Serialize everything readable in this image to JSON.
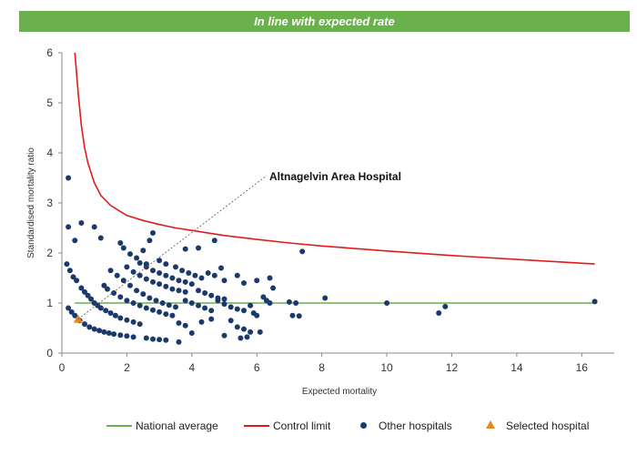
{
  "banner": {
    "text": "In line with expected rate"
  },
  "legend": {
    "national_average": "National average",
    "control_limit": "Control limit",
    "other_hospitals": "Other hospitals",
    "selected_hospital": "Selected hospital"
  },
  "colors": {
    "banner": "#6ab04c",
    "national_average": "#6ab04c",
    "control_limit": "#dd1c1c",
    "other_hospitals": "#1b3a6b",
    "selected_hospital": "#e8861a"
  },
  "chart_data": {
    "type": "scatter",
    "title": "",
    "xlabel": "Expected mortality",
    "ylabel": "Standardised mortality ratio",
    "xlim": [
      0,
      17
    ],
    "ylim": [
      0,
      6
    ],
    "x_ticks": [
      "0",
      "2",
      "4",
      "6",
      "8",
      "10",
      "12",
      "14",
      "16"
    ],
    "y_ticks": [
      "0",
      "1",
      "2",
      "3",
      "4",
      "5",
      "6"
    ],
    "grid": false,
    "legend_position": "bottom",
    "annotation": {
      "label": "Altnagelvin Area Hospital",
      "point": [
        0.5,
        0.68
      ]
    },
    "national_average": {
      "name": "National average",
      "x": [
        0.4,
        16.4
      ],
      "y": [
        1,
        1
      ]
    },
    "control_limit": {
      "name": "Control limit",
      "x": [
        0.4,
        0.5,
        0.6,
        0.7,
        0.8,
        1.0,
        1.2,
        1.5,
        2,
        2.5,
        3,
        3.5,
        4,
        5,
        6,
        7,
        8,
        10,
        12,
        14,
        16.4
      ],
      "y": [
        6.0,
        5.2,
        4.55,
        4.1,
        3.8,
        3.4,
        3.15,
        2.95,
        2.75,
        2.65,
        2.57,
        2.5,
        2.45,
        2.35,
        2.27,
        2.2,
        2.14,
        2.04,
        1.95,
        1.87,
        1.78
      ]
    },
    "series": [
      {
        "name": "Other hospitals",
        "points": [
          [
            0.2,
            3.5
          ],
          [
            0.6,
            2.6
          ],
          [
            1.0,
            2.52
          ],
          [
            0.2,
            2.52
          ],
          [
            0.4,
            2.25
          ],
          [
            1.2,
            2.3
          ],
          [
            0.15,
            1.78
          ],
          [
            0.25,
            1.65
          ],
          [
            0.35,
            1.52
          ],
          [
            0.45,
            1.45
          ],
          [
            0.6,
            1.3
          ],
          [
            0.7,
            1.22
          ],
          [
            0.8,
            1.15
          ],
          [
            0.9,
            1.08
          ],
          [
            1.0,
            1.0
          ],
          [
            1.1,
            0.95
          ],
          [
            1.2,
            0.9
          ],
          [
            1.35,
            0.85
          ],
          [
            1.5,
            0.8
          ],
          [
            1.65,
            0.75
          ],
          [
            1.8,
            0.7
          ],
          [
            2.0,
            0.66
          ],
          [
            2.2,
            0.62
          ],
          [
            2.4,
            0.58
          ],
          [
            0.2,
            0.9
          ],
          [
            0.3,
            0.82
          ],
          [
            0.4,
            0.75
          ],
          [
            0.55,
            0.65
          ],
          [
            0.7,
            0.58
          ],
          [
            0.85,
            0.52
          ],
          [
            1.0,
            0.48
          ],
          [
            1.15,
            0.45
          ],
          [
            1.3,
            0.42
          ],
          [
            1.45,
            0.4
          ],
          [
            1.6,
            0.38
          ],
          [
            1.8,
            0.36
          ],
          [
            2.0,
            0.34
          ],
          [
            2.2,
            0.32
          ],
          [
            1.3,
            1.35
          ],
          [
            1.4,
            1.28
          ],
          [
            1.6,
            1.2
          ],
          [
            1.8,
            1.12
          ],
          [
            2.0,
            1.05
          ],
          [
            2.2,
            1.0
          ],
          [
            2.4,
            0.95
          ],
          [
            2.6,
            0.9
          ],
          [
            2.8,
            0.86
          ],
          [
            3.0,
            0.82
          ],
          [
            3.2,
            0.78
          ],
          [
            3.4,
            0.75
          ],
          [
            2.6,
            0.3
          ],
          [
            2.8,
            0.28
          ],
          [
            3.0,
            0.27
          ],
          [
            3.2,
            0.26
          ],
          [
            3.6,
            0.22
          ],
          [
            1.8,
            2.2
          ],
          [
            1.9,
            2.1
          ],
          [
            2.1,
            1.98
          ],
          [
            2.3,
            1.9
          ],
          [
            2.5,
            2.05
          ],
          [
            2.7,
            2.25
          ],
          [
            2.8,
            2.4
          ],
          [
            2.6,
            1.78
          ],
          [
            1.5,
            1.65
          ],
          [
            1.7,
            1.55
          ],
          [
            1.9,
            1.45
          ],
          [
            2.1,
            1.35
          ],
          [
            2.3,
            1.25
          ],
          [
            2.5,
            1.18
          ],
          [
            2.7,
            1.1
          ],
          [
            2.9,
            1.05
          ],
          [
            3.1,
            1.0
          ],
          [
            3.3,
            0.96
          ],
          [
            3.5,
            0.92
          ],
          [
            2.0,
            1.72
          ],
          [
            2.2,
            1.62
          ],
          [
            2.4,
            1.55
          ],
          [
            2.6,
            1.48
          ],
          [
            2.8,
            1.42
          ],
          [
            3.0,
            1.38
          ],
          [
            3.2,
            1.33
          ],
          [
            3.4,
            1.28
          ],
          [
            3.6,
            1.25
          ],
          [
            3.8,
            1.22
          ],
          [
            2.4,
            1.8
          ],
          [
            2.6,
            1.72
          ],
          [
            2.8,
            1.65
          ],
          [
            3.0,
            1.6
          ],
          [
            3.2,
            1.55
          ],
          [
            3.4,
            1.5
          ],
          [
            3.6,
            1.45
          ],
          [
            3.8,
            1.42
          ],
          [
            4.0,
            1.38
          ],
          [
            3.0,
            1.85
          ],
          [
            3.2,
            1.78
          ],
          [
            3.5,
            1.72
          ],
          [
            3.8,
            2.08
          ],
          [
            4.2,
            2.1
          ],
          [
            4.7,
            2.25
          ],
          [
            3.7,
            1.65
          ],
          [
            3.9,
            1.6
          ],
          [
            4.1,
            1.55
          ],
          [
            4.3,
            1.5
          ],
          [
            4.5,
            1.6
          ],
          [
            4.7,
            1.55
          ],
          [
            4.9,
            1.7
          ],
          [
            5.0,
            1.45
          ],
          [
            5.4,
            1.55
          ],
          [
            5.6,
            1.4
          ],
          [
            6.0,
            1.45
          ],
          [
            6.4,
            1.5
          ],
          [
            3.8,
            1.05
          ],
          [
            4.0,
            1.0
          ],
          [
            4.2,
            0.95
          ],
          [
            4.4,
            0.9
          ],
          [
            4.6,
            0.85
          ],
          [
            4.8,
            1.05
          ],
          [
            5.0,
            0.98
          ],
          [
            5.2,
            0.92
          ],
          [
            5.4,
            0.88
          ],
          [
            5.6,
            0.85
          ],
          [
            3.6,
            0.6
          ],
          [
            3.8,
            0.55
          ],
          [
            4.0,
            0.4
          ],
          [
            4.3,
            0.62
          ],
          [
            4.6,
            0.68
          ],
          [
            5.0,
            0.35
          ],
          [
            5.2,
            0.65
          ],
          [
            5.4,
            0.52
          ],
          [
            5.6,
            0.48
          ],
          [
            5.8,
            0.42
          ],
          [
            6.0,
            0.75
          ],
          [
            6.1,
            0.42
          ],
          [
            6.2,
            1.12
          ],
          [
            6.3,
            1.05
          ],
          [
            6.5,
            1.3
          ],
          [
            5.8,
            0.95
          ],
          [
            5.9,
            0.8
          ],
          [
            6.4,
            1.0
          ],
          [
            5.5,
            0.3
          ],
          [
            5.7,
            0.32
          ],
          [
            4.2,
            1.25
          ],
          [
            4.4,
            1.2
          ],
          [
            4.6,
            1.15
          ],
          [
            4.8,
            1.1
          ],
          [
            5.0,
            1.08
          ],
          [
            7.0,
            1.02
          ],
          [
            7.2,
            1.0
          ],
          [
            7.1,
            0.75
          ],
          [
            7.3,
            0.74
          ],
          [
            7.4,
            2.03
          ],
          [
            8.1,
            1.1
          ],
          [
            10.0,
            1.0
          ],
          [
            11.6,
            0.8
          ],
          [
            11.8,
            0.93
          ],
          [
            16.4,
            1.03
          ]
        ]
      },
      {
        "name": "Selected hospital",
        "points": [
          [
            0.5,
            0.68
          ]
        ]
      }
    ]
  }
}
